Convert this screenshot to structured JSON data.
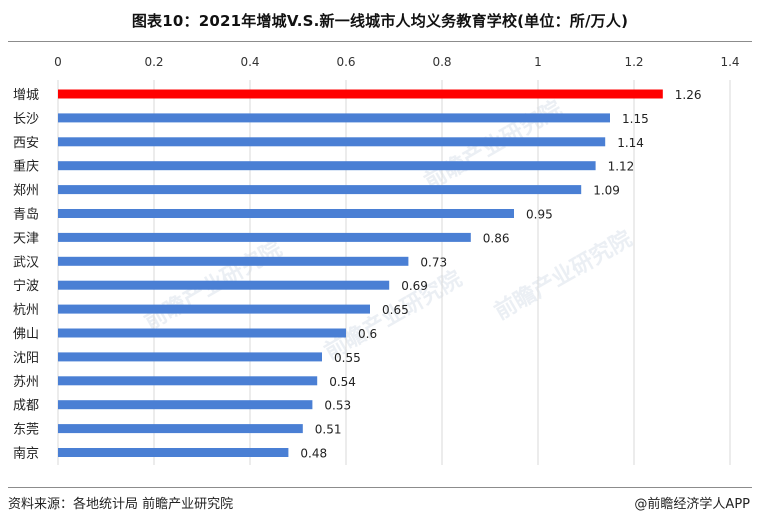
{
  "header": {
    "title": "图表10：2021年增城V.S.新一线城市人均义务教育学校(单位：所/万人)"
  },
  "footer": {
    "source": "资料来源：各地统计局 前瞻产业研究院",
    "credit": "@前瞻经济学人APP"
  },
  "watermark": {
    "text": "前瞻产业研究院"
  },
  "colors": {
    "highlight": "#ff0000",
    "bar": "#4a7fd4",
    "grid": "#d9d9d9"
  },
  "chart_data": {
    "type": "bar",
    "orientation": "horizontal",
    "title": "图表10：2021年增城V.S.新一线城市人均义务教育学校(单位：所/万人)",
    "xlabel": "",
    "ylabel": "",
    "xlim": [
      0,
      1.4
    ],
    "x_ticks": [
      0,
      0.2,
      0.4,
      0.6,
      0.8,
      1,
      1.2,
      1.4
    ],
    "x_tick_labels": [
      "0",
      "0.2",
      "0.4",
      "0.6",
      "0.8",
      "1",
      "1.2",
      "1.4"
    ],
    "x_axis_position": "top",
    "grid": true,
    "legend": "none",
    "categories": [
      "增城",
      "长沙",
      "西安",
      "重庆",
      "郑州",
      "青岛",
      "天津",
      "武汉",
      "宁波",
      "杭州",
      "佛山",
      "沈阳",
      "苏州",
      "成都",
      "东莞",
      "南京"
    ],
    "values": [
      1.26,
      1.15,
      1.14,
      1.12,
      1.09,
      0.95,
      0.86,
      0.73,
      0.69,
      0.65,
      0.6,
      0.55,
      0.54,
      0.53,
      0.51,
      0.48
    ],
    "value_labels": [
      "1.26",
      "1.15",
      "1.14",
      "1.12",
      "1.09",
      "0.95",
      "0.86",
      "0.73",
      "0.69",
      "0.65",
      "0.6",
      "0.55",
      "0.54",
      "0.53",
      "0.51",
      "0.48"
    ],
    "highlighted_category": "增城"
  }
}
